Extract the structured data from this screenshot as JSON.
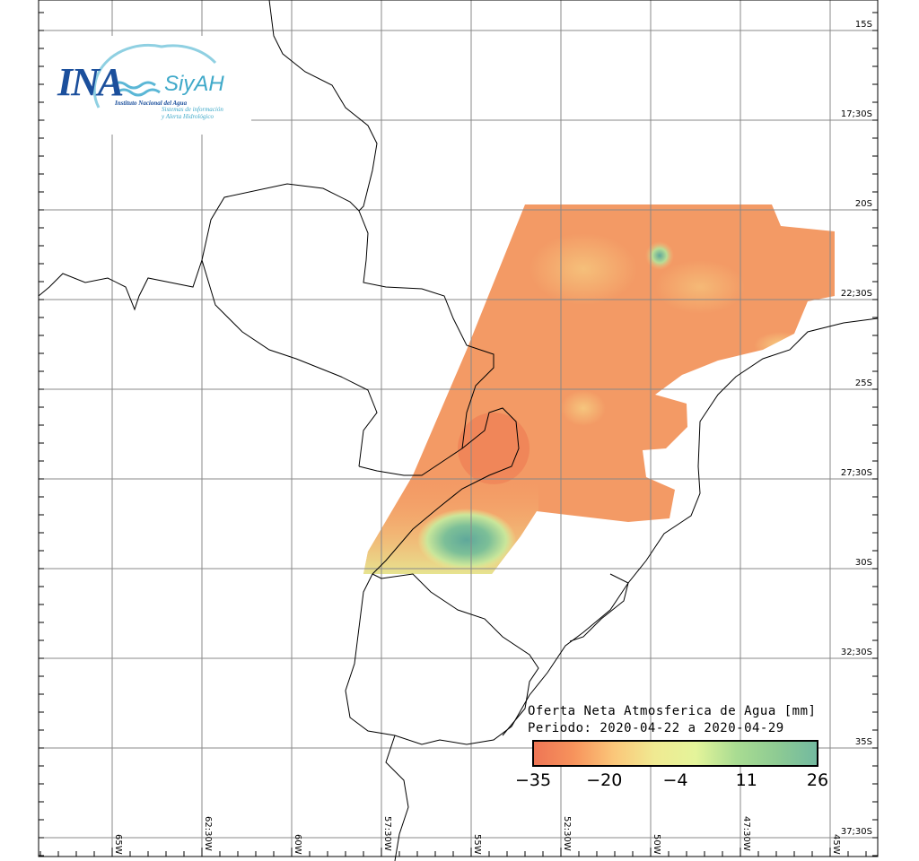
{
  "logo": {
    "acronym": "INA",
    "system": "SiyAH",
    "institute": "Instituto Nacional del Agua",
    "subtitle_line1": "Sistemas de información",
    "subtitle_line2": "y Alerta Hidrológico"
  },
  "legend": {
    "title": "Oferta Neta Atmosferica de Agua [mm]",
    "period": "Periodo: 2020-04-22 a 2020-04-29",
    "ticks": [
      "−35",
      "−20",
      "−4",
      "11",
      "26"
    ],
    "colors": [
      "#ee7555",
      "#f7935c",
      "#fbc77a",
      "#f0ea92",
      "#e4f49a",
      "#a9dc92",
      "#8ecb93",
      "#72b9a0"
    ]
  },
  "lat_labels": [
    "15S",
    "17;30S",
    "20S",
    "22;30S",
    "25S",
    "27;30S",
    "30S",
    "32;30S",
    "35S",
    "37;30S"
  ],
  "lon_labels": [
    "65W",
    "62:30W",
    "60W",
    "57:30W",
    "55W",
    "52:30W",
    "50W",
    "47:30W",
    "45W"
  ]
}
